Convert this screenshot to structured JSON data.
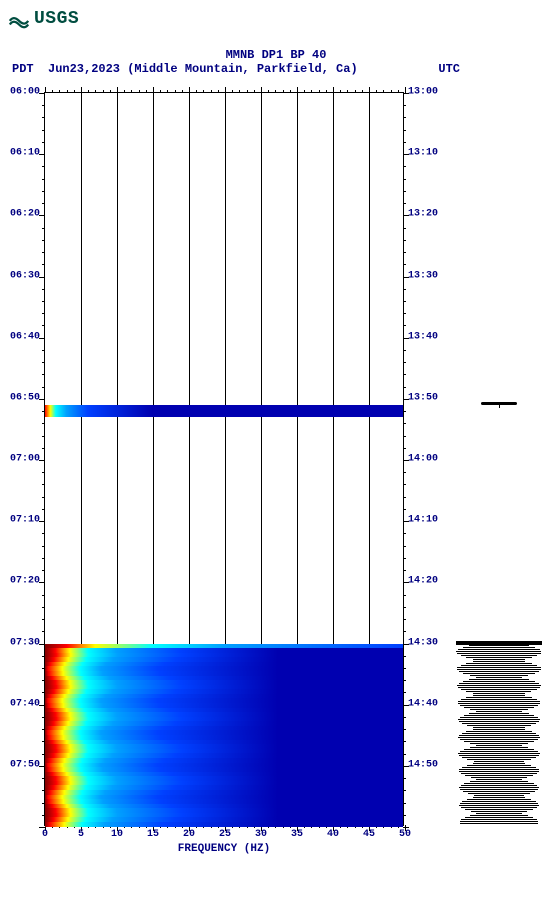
{
  "logo_text": "USGS",
  "title": "MMNB DP1 BP 40",
  "subtitle_left_tz": "PDT",
  "subtitle_date_loc": "Jun23,2023 (Middle Mountain, Parkfield, Ca)",
  "subtitle_right_tz": "UTC",
  "spectrogram": {
    "type": "heatmap",
    "xlabel": "FREQUENCY (HZ)",
    "xlim": [
      0,
      50
    ],
    "xtick_step": 5,
    "xminor_step": 1,
    "y_time_start_pdt": "06:00",
    "y_time_end_pdt": "08:00",
    "y_time_start_utc": "13:00",
    "y_time_end_utc": "15:00",
    "ytick_step_minutes": 10,
    "yminor_step_minutes": 2,
    "grid_x": true,
    "background_color": "#ffffff",
    "colormap": [
      "#800000",
      "#ff0000",
      "#ff8000",
      "#ffff00",
      "#80ff00",
      "#00ffff",
      "#00a0ff",
      "#0040ff",
      "#0000b0",
      "#000060"
    ],
    "pdt_ticks": [
      "06:00",
      "06:10",
      "06:20",
      "06:30",
      "06:40",
      "06:50",
      "07:00",
      "07:10",
      "07:20",
      "07:30",
      "07:40",
      "07:50"
    ],
    "utc_ticks": [
      "13:00",
      "13:10",
      "13:20",
      "13:30",
      "13:40",
      "13:50",
      "14:00",
      "14:10",
      "14:20",
      "14:30",
      "14:40",
      "14:50"
    ],
    "x_ticks": [
      "0",
      "5",
      "10",
      "15",
      "20",
      "25",
      "30",
      "35",
      "40",
      "45",
      "50"
    ],
    "events": [
      {
        "pdt_start_min": 51,
        "pdt_end_min": 52,
        "intensity": "low"
      },
      {
        "pdt_start_min": 90,
        "pdt_end_min": 120,
        "intensity": "high"
      }
    ]
  },
  "seismogram": {
    "baseline_color": "#000000",
    "events": [
      {
        "minute": 51,
        "amplitude": 0.25
      },
      {
        "minute_start": 90,
        "minute_end": 120,
        "amplitude": 0.9
      }
    ]
  },
  "colors": {
    "text": "#000080",
    "axes": "#000000",
    "logo": "#004d40"
  }
}
